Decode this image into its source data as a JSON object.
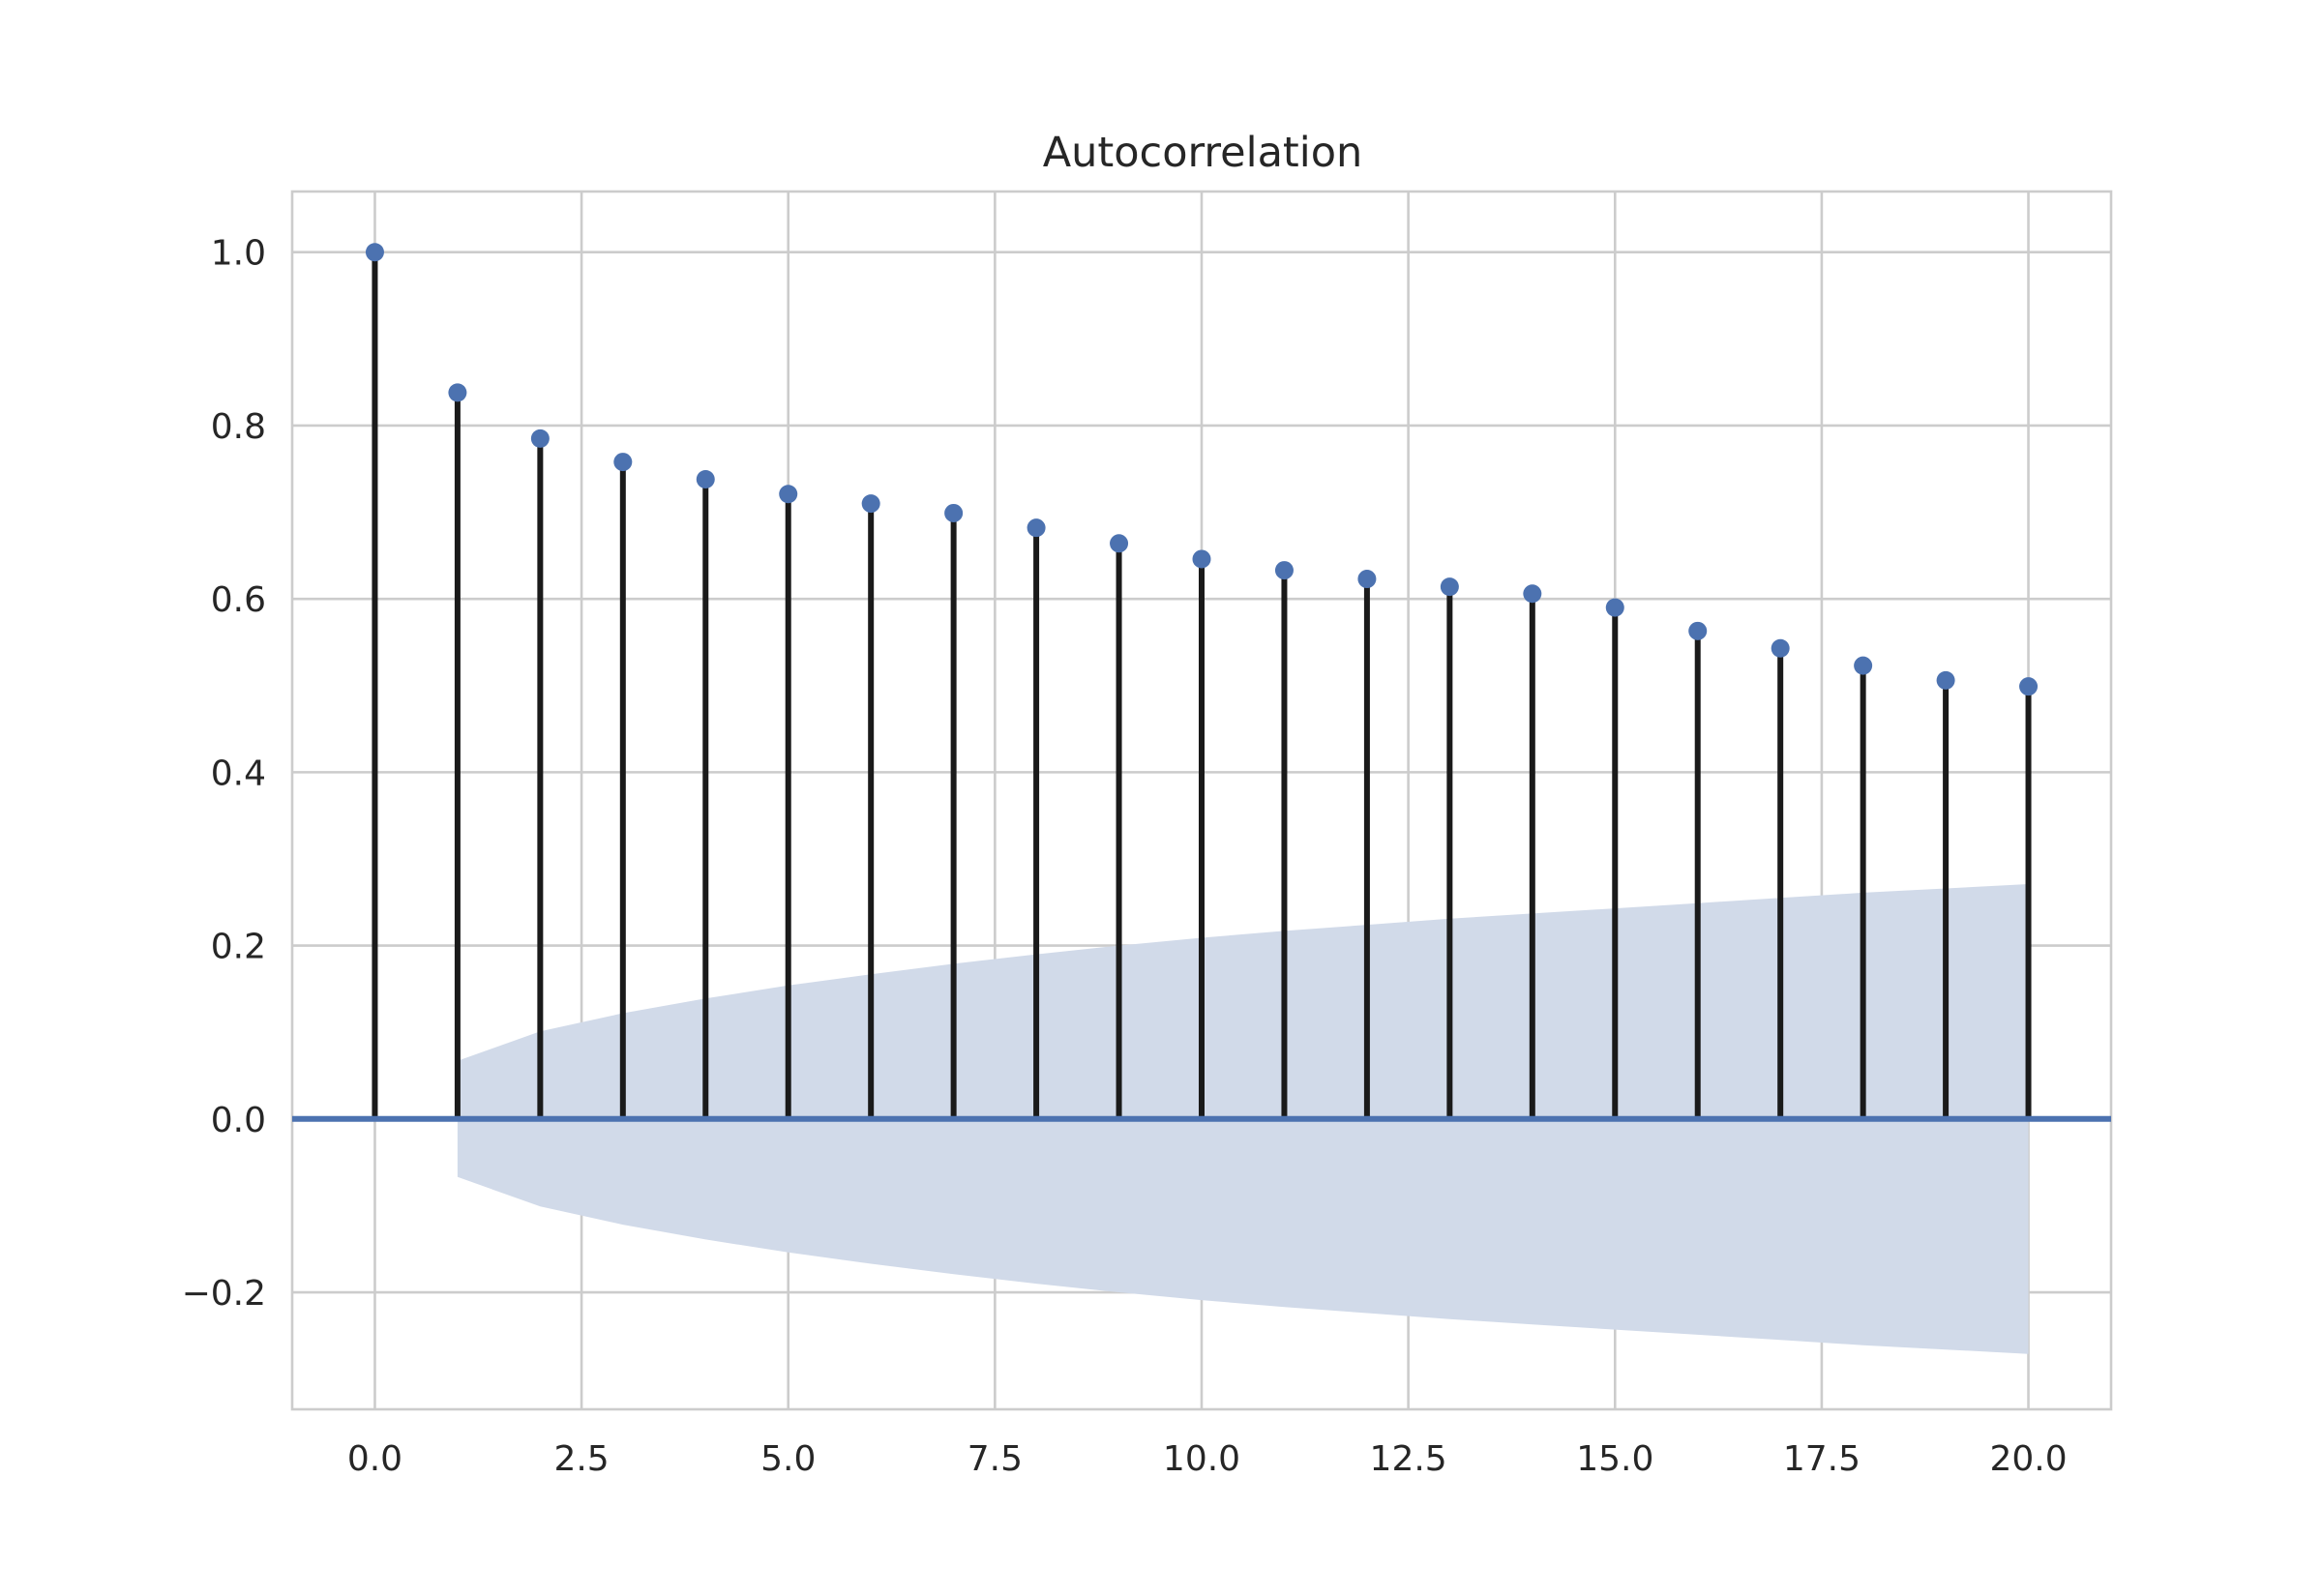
{
  "chart_data": {
    "type": "stem",
    "title": "Autocorrelation",
    "xlabel": "",
    "ylabel": "",
    "xlim": [
      -1,
      21
    ],
    "ylim": [
      -0.335,
      1.07
    ],
    "x_ticks": [
      0.0,
      2.5,
      5.0,
      7.5,
      10.0,
      12.5,
      15.0,
      17.5,
      20.0
    ],
    "x_tick_labels": [
      "0.0",
      "2.5",
      "5.0",
      "7.5",
      "10.0",
      "12.5",
      "15.0",
      "17.5",
      "20.0"
    ],
    "y_ticks": [
      -0.2,
      0.0,
      0.2,
      0.4,
      0.6,
      0.8,
      1.0
    ],
    "y_tick_labels": [
      "−0.2",
      "0.0",
      "0.2",
      "0.4",
      "0.6",
      "0.8",
      "1.0"
    ],
    "grid": true,
    "lags": [
      0,
      1,
      2,
      3,
      4,
      5,
      6,
      7,
      8,
      9,
      10,
      11,
      12,
      13,
      14,
      15,
      16,
      17,
      18,
      19,
      20
    ],
    "values": [
      1.0,
      0.838,
      0.785,
      0.758,
      0.738,
      0.721,
      0.71,
      0.699,
      0.682,
      0.664,
      0.646,
      0.633,
      0.623,
      0.614,
      0.606,
      0.59,
      0.563,
      0.543,
      0.523,
      0.506,
      0.499
    ],
    "confint_lags": [
      1,
      2,
      3,
      4,
      5,
      6,
      7,
      8,
      9,
      10,
      11,
      12,
      13,
      14,
      15,
      16,
      17,
      18,
      19,
      20
    ],
    "confint_upper": [
      0.067,
      0.101,
      0.122,
      0.139,
      0.154,
      0.167,
      0.179,
      0.19,
      0.2,
      0.209,
      0.217,
      0.224,
      0.231,
      0.237,
      0.243,
      0.249,
      0.255,
      0.261,
      0.266,
      0.271
    ],
    "colors": {
      "stem": "#1a1a1a",
      "marker": "#4c72b0",
      "baseline": "#4c72b0",
      "confint": "#d1dae9",
      "grid": "#cccccc",
      "spine": "#cccccc"
    }
  }
}
